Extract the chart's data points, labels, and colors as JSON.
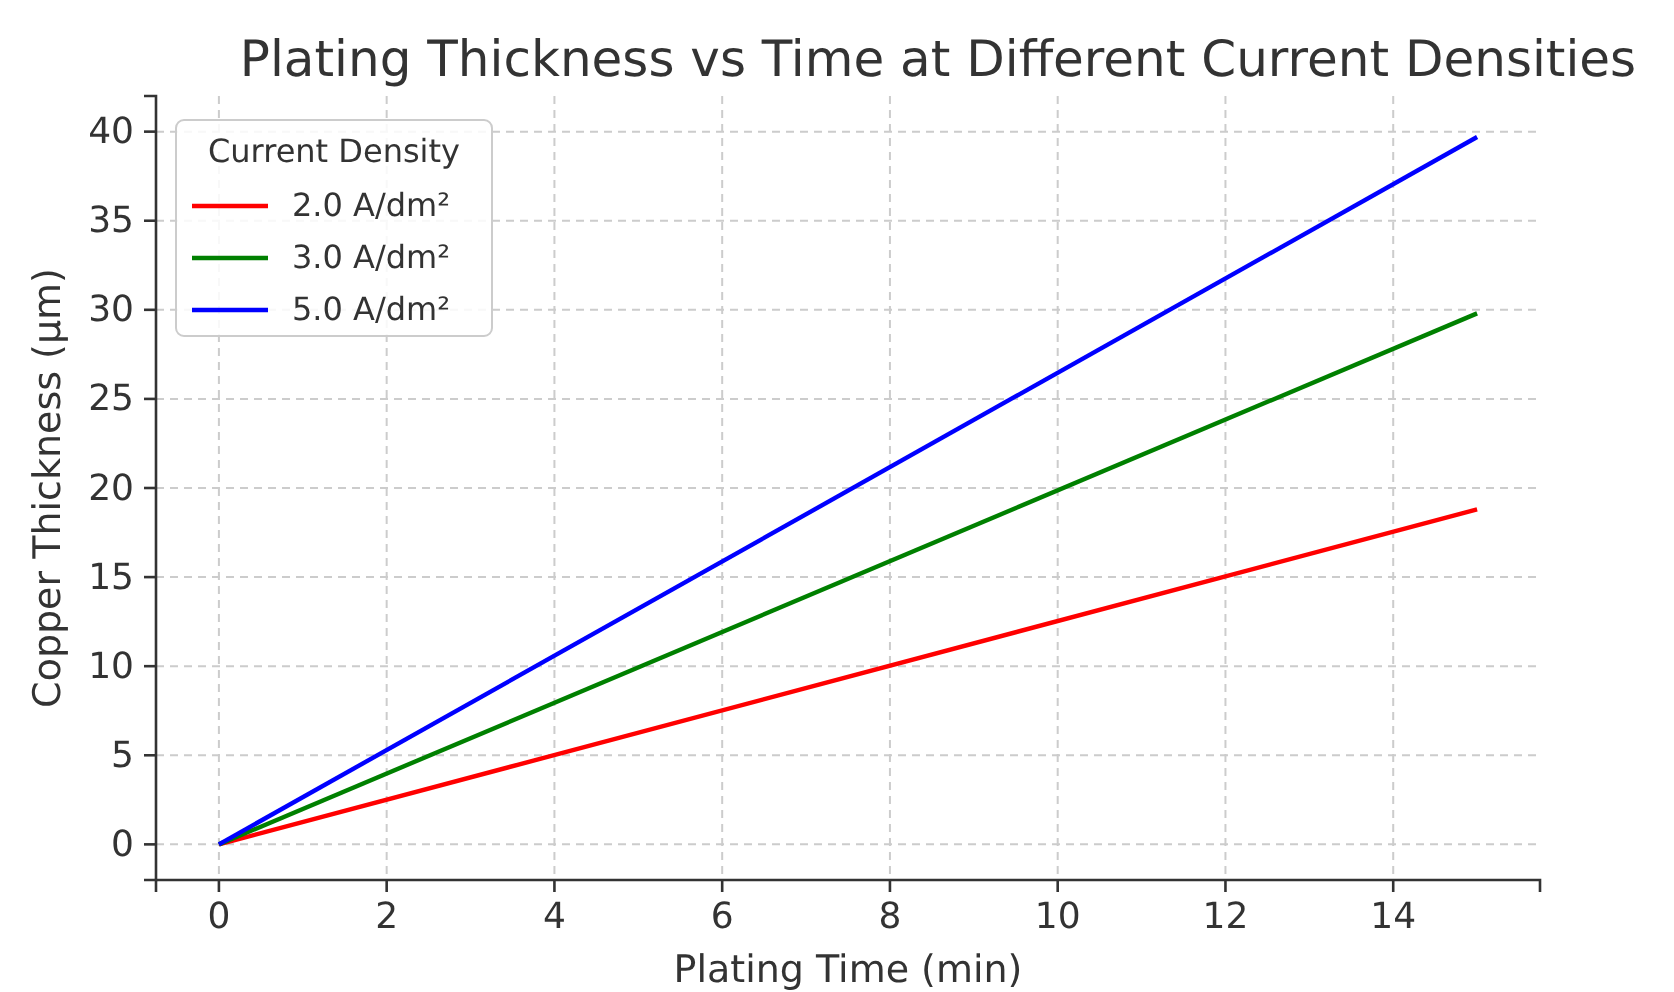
{
  "chart_data": {
    "type": "line",
    "title": "Plating Thickness vs Time at Different Current Densities",
    "xlabel": "Plating Time (min)",
    "ylabel": "Copper Thickness (µm)",
    "legend_title": "Current Density",
    "x": [
      0,
      15
    ],
    "series": [
      {
        "name": "2.0 A/dm²",
        "color": "#ff0000",
        "values": [
          0,
          18.8
        ]
      },
      {
        "name": "3.0 A/dm²",
        "color": "#008000",
        "values": [
          0,
          29.8
        ]
      },
      {
        "name": "5.0 A/dm²",
        "color": "#0000ff",
        "values": [
          0,
          39.7
        ]
      }
    ],
    "xlim": [
      -0.75,
      15.75
    ],
    "ylim": [
      -2,
      42
    ],
    "xticks": [
      0,
      2,
      4,
      6,
      8,
      10,
      12,
      14
    ],
    "yticks": [
      0,
      5,
      10,
      15,
      20,
      25,
      30,
      35,
      40
    ],
    "grid": true,
    "legend": "top left",
    "line_style": "solid",
    "marker": "none"
  }
}
